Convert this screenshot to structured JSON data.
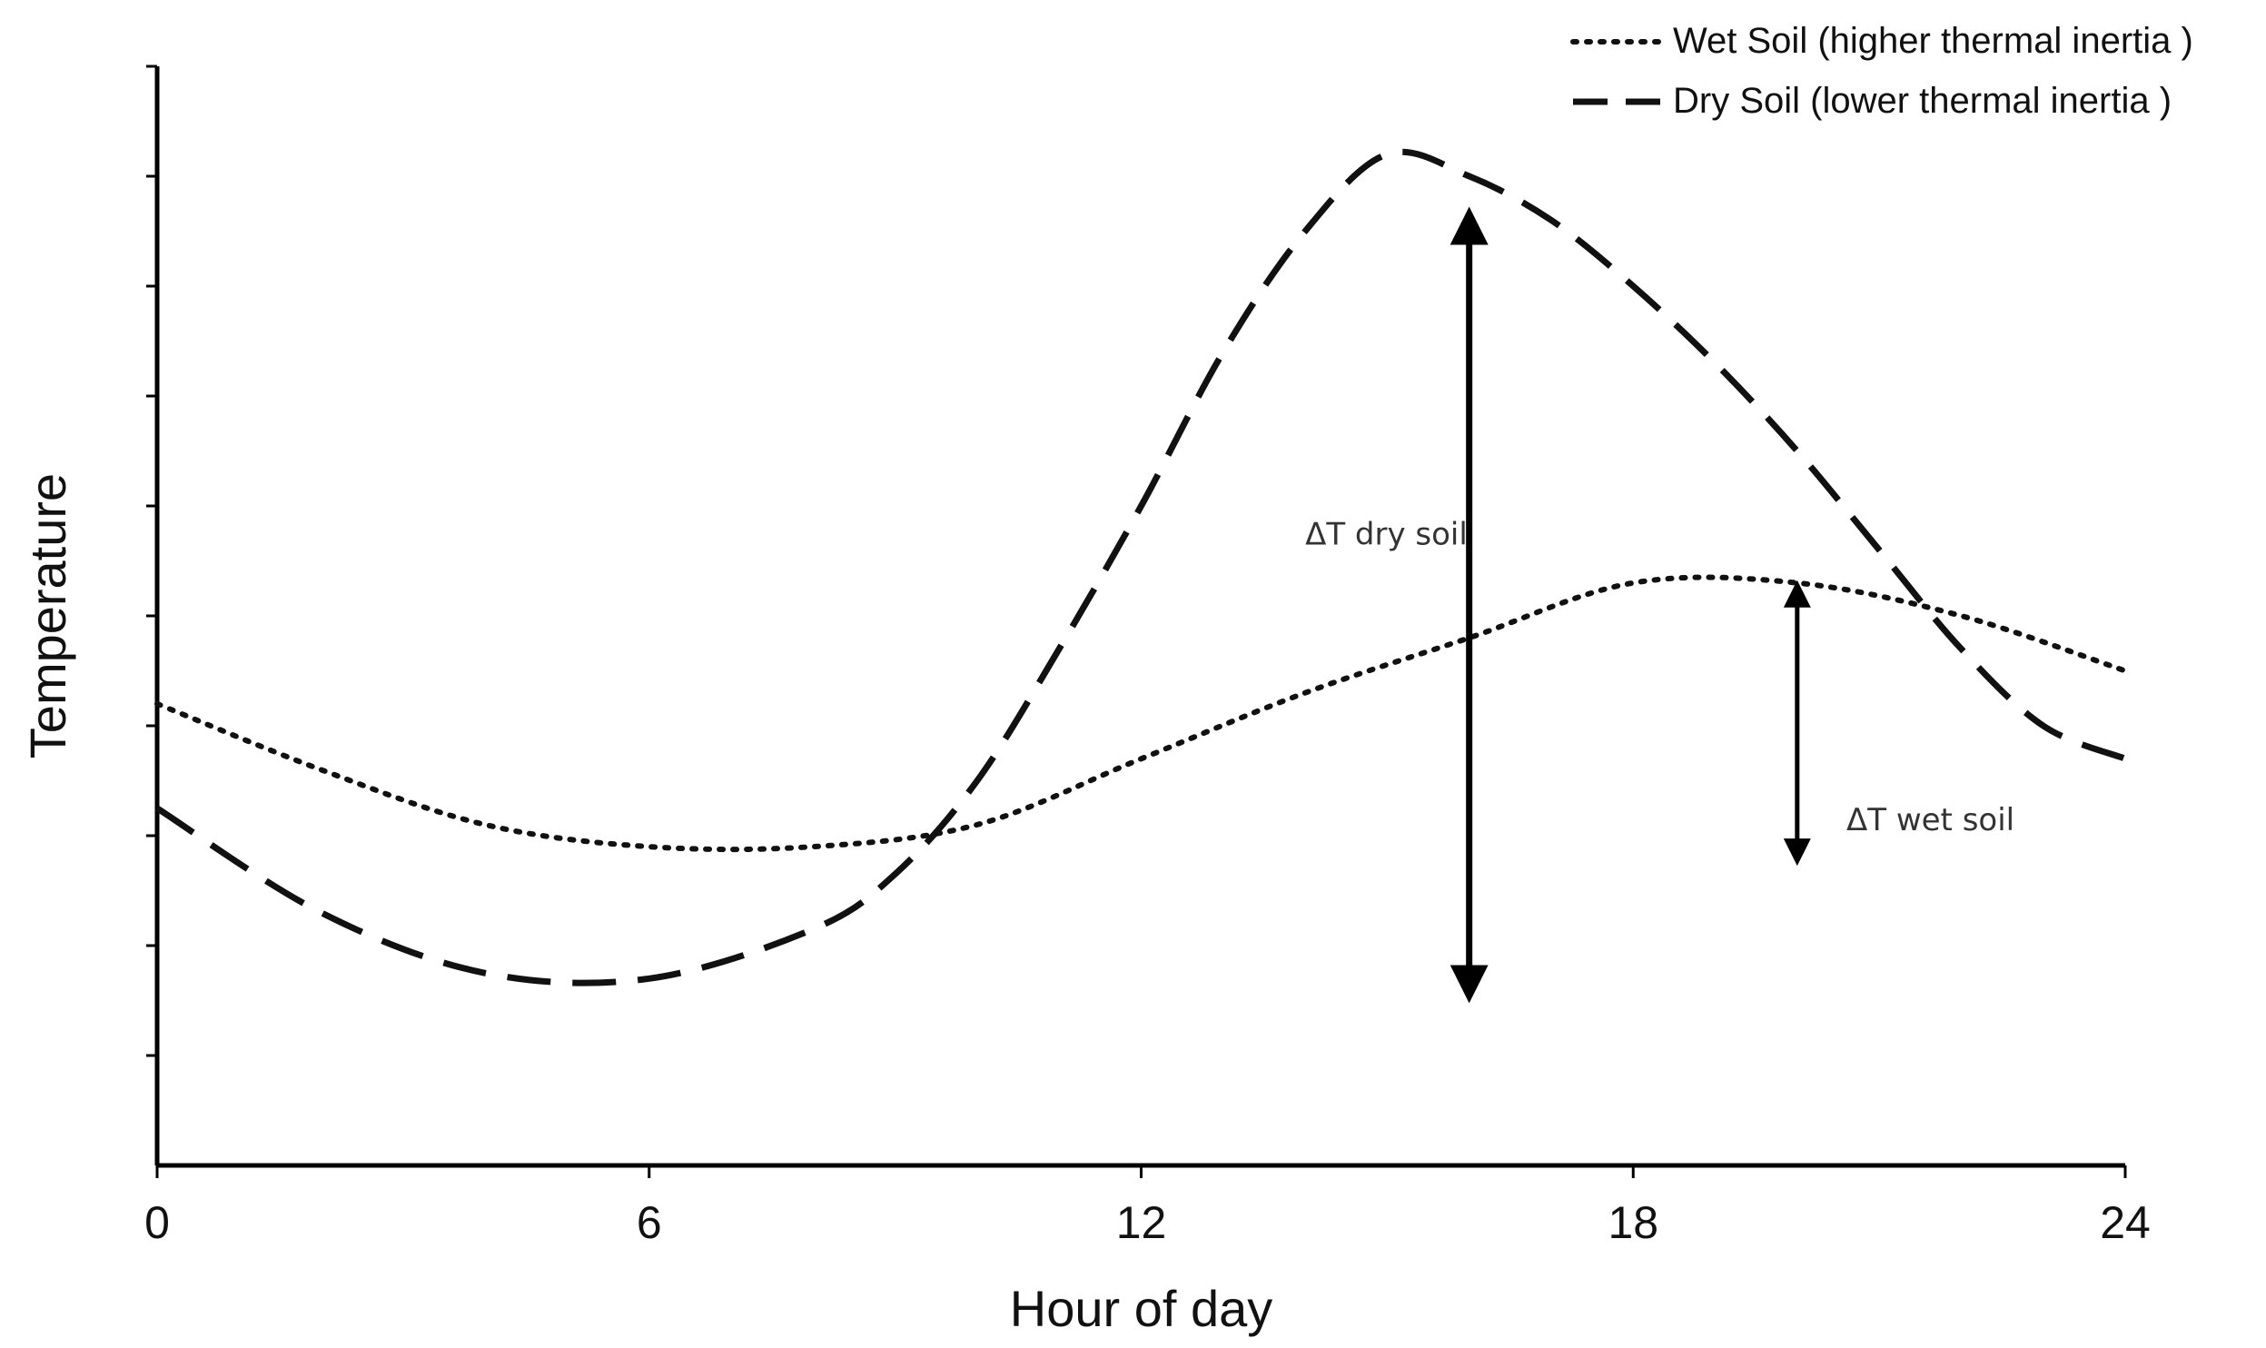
{
  "chart_data": {
    "type": "line",
    "title": "",
    "xlabel": "Hour of day",
    "ylabel": "Temperature",
    "xlim": [
      0,
      24
    ],
    "ylim": [
      0,
      10
    ],
    "x_ticks": [
      "0",
      "6",
      "12",
      "18",
      "24"
    ],
    "y_tick_values": [
      1,
      2,
      3,
      4,
      5,
      6,
      7,
      8,
      9,
      10
    ],
    "grid": false,
    "legend_position": "top-right",
    "series": [
      {
        "name": "Wet Soil (higher thermal inertia )",
        "style": "dotted",
        "color": "#111111",
        "x": [
          0,
          2,
          4,
          6,
          8,
          10,
          12,
          14,
          16,
          18,
          20,
          22,
          24
        ],
        "y": [
          4.2,
          3.6,
          3.1,
          2.9,
          2.9,
          3.1,
          3.7,
          4.3,
          4.8,
          5.3,
          5.3,
          5.0,
          4.5
        ]
      },
      {
        "name": "Dry Soil (lower thermal inertia )",
        "style": "dashed",
        "color": "#111111",
        "x": [
          0,
          2,
          4,
          6,
          8,
          9,
          10,
          11,
          12,
          13,
          14,
          15,
          16,
          17,
          18,
          19,
          20,
          21,
          22,
          23,
          24
        ],
        "y": [
          3.25,
          2.3,
          1.75,
          1.7,
          2.15,
          2.65,
          3.5,
          4.7,
          6.0,
          7.4,
          8.5,
          9.2,
          9.0,
          8.6,
          8.0,
          7.3,
          6.5,
          5.6,
          4.7,
          4.0,
          3.7
        ]
      }
    ],
    "annotations": [
      {
        "text": "ΔT dry soil",
        "x": 14.0,
        "y": 5.65,
        "arrow_x": 16,
        "arrow_from": 1.65,
        "arrow_to": 8.55
      },
      {
        "text": "ΔT wet soil",
        "x": 20.6,
        "y": 3.05,
        "arrow_x": 20,
        "arrow_from": 2.85,
        "arrow_to": 5.2
      }
    ]
  }
}
